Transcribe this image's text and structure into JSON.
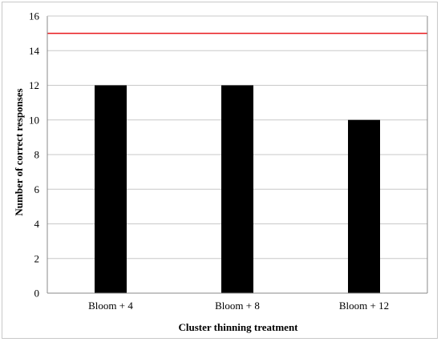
{
  "chart_data": {
    "type": "bar",
    "categories": [
      "Bloom + 4",
      "Bloom + 8",
      "Bloom + 12"
    ],
    "values": [
      12,
      12,
      10
    ],
    "xlabel": "Cluster thinning treatment",
    "ylabel": "Number of correct responses",
    "ylim": [
      0,
      16
    ],
    "yticks": [
      0,
      2,
      4,
      6,
      8,
      10,
      12,
      14,
      16
    ],
    "reference_line": {
      "value": 15,
      "color": "#e8191c"
    },
    "bar_color": "#000000",
    "grid": true,
    "legend": "none"
  }
}
